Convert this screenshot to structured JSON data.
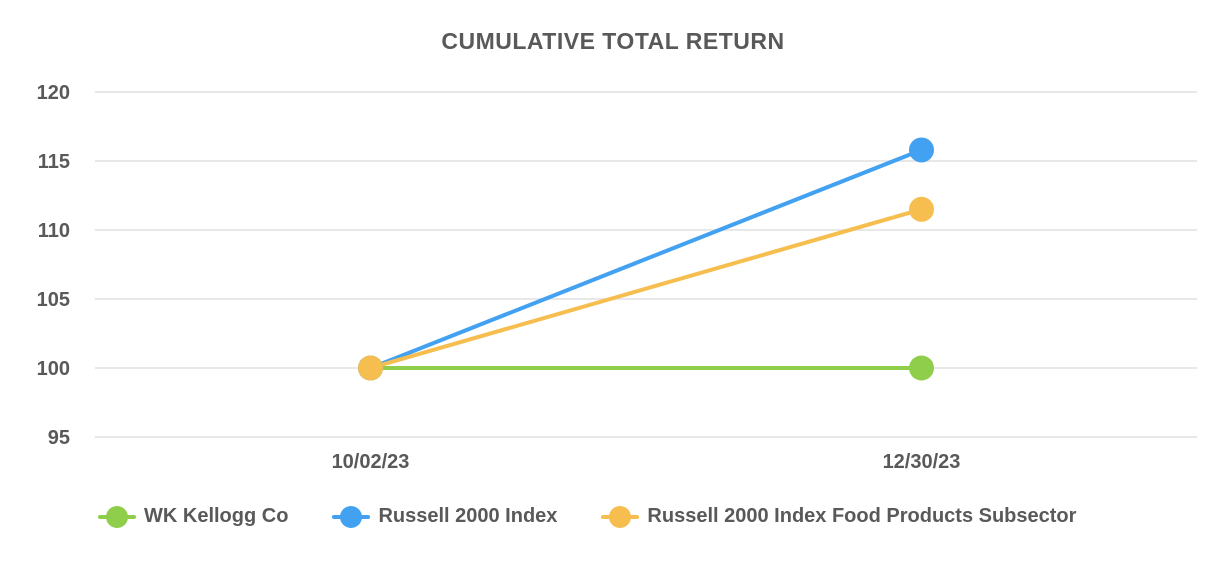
{
  "chart_data": {
    "type": "line",
    "title": "CUMULATIVE TOTAL RETURN",
    "x_categories": [
      "10/02/23",
      "12/30/23"
    ],
    "y_ticks": [
      120,
      115,
      110,
      105,
      100,
      95
    ],
    "ylim": [
      95,
      120
    ],
    "grid": true,
    "legend_position": "bottom",
    "series": [
      {
        "name": "WK Kellogg Co",
        "color": "#8FCE4B",
        "values": [
          100,
          100
        ]
      },
      {
        "name": "Russell 2000 Index",
        "color": "#42A1F0",
        "values": [
          100,
          115.8
        ]
      },
      {
        "name": "Russell 2000 Index Food Products Subsector",
        "color": "#F5BE4F",
        "values": [
          100,
          111.5
        ]
      }
    ],
    "colors": {
      "text": "#595959",
      "gridline": "#E8E8E8",
      "background": "#FFFFFF"
    }
  }
}
